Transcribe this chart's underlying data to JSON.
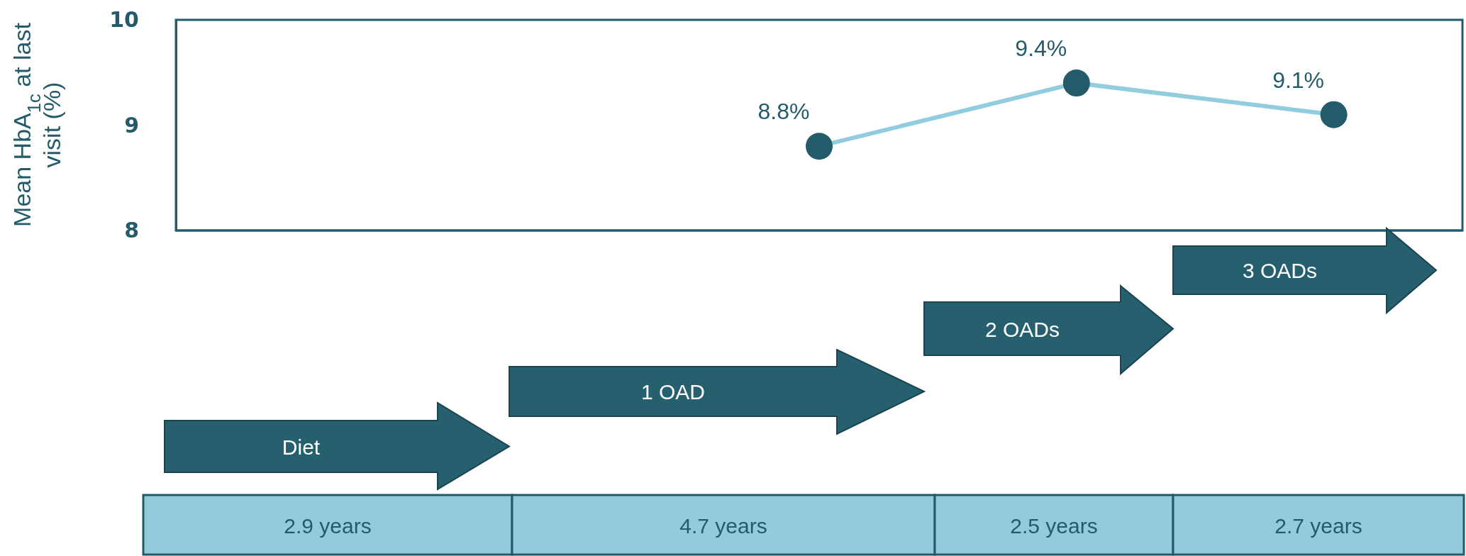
{
  "chart_data": {
    "type": "line",
    "ylabel": "Mean HbA$_{1c}$ at last visit (%)",
    "categories": [
      null,
      null,
      null,
      null,
      null
    ],
    "series": [
      {
        "color": "#92cddf",
        "values": [
          null,
          null,
          8.8,
          9.4,
          9.1
        ],
        "value_labels": [
          null,
          null,
          "8.8%",
          "9.4%",
          "9.1%"
        ]
      }
    ],
    "ylim": [
      8,
      10
    ],
    "yticks": [
      8,
      9,
      10
    ],
    "grid": false,
    "marker": "circle",
    "line_style": "solid",
    "annotations": [
      "Diet",
      "1 OAD",
      "2 OADs",
      "3 OADs",
      "2.9 years",
      "4.7 years",
      "2.5 years",
      "2.7 years"
    ]
  }
}
